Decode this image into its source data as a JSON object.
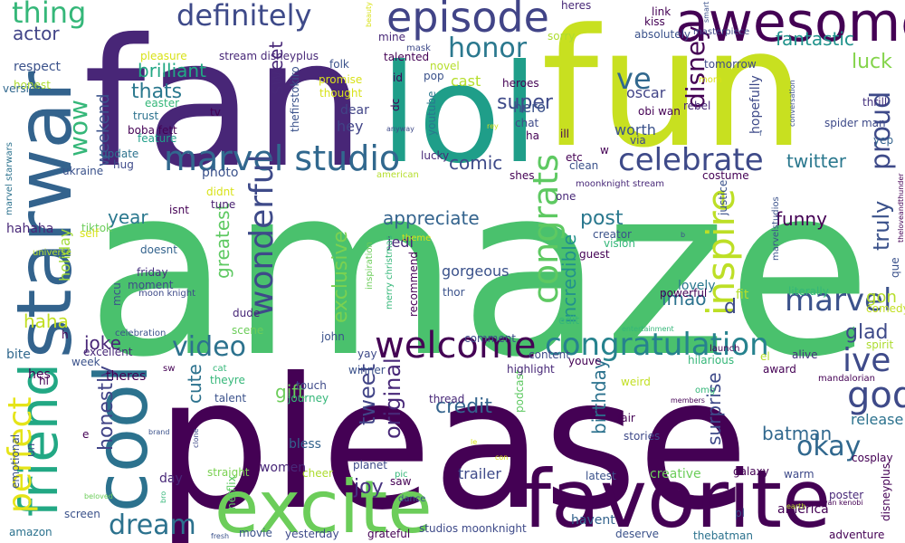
{
  "palette": {
    "dark_purple": "#440154",
    "indigo": "#472d7b",
    "blue_purple": "#3b528b",
    "slate_blue": "#2c728e",
    "teal_blue": "#21918c",
    "teal": "#28ae80",
    "green": "#5ec962",
    "light_green": "#addc30",
    "yellow": "#d8e219",
    "bright_yellow": "#fde725"
  },
  "words": [
    {
      "text": "amaze",
      "color": "#4ac16d"
    },
    {
      "text": "please",
      "color": "#440154"
    },
    {
      "text": "fan",
      "color": "#482677"
    },
    {
      "text": "fun",
      "color": "#c8e020"
    },
    {
      "text": "lol",
      "color": "#1f9e89"
    },
    {
      "text": "starwar",
      "color": "#33638d"
    },
    {
      "text": "favorite",
      "color": "#440154"
    },
    {
      "text": "excite",
      "color": "#6ccd5a"
    },
    {
      "text": "cool",
      "color": "#2c728e"
    },
    {
      "text": "awesome",
      "color": "#440154"
    },
    {
      "text": "friend",
      "color": "#22a884"
    },
    {
      "text": "episode",
      "color": "#414487"
    },
    {
      "text": "welcome",
      "color": "#440154"
    },
    {
      "text": "marvel studio",
      "color": "#31688e"
    },
    {
      "text": "congratulation",
      "color": "#26828e"
    },
    {
      "text": "celebrate",
      "color": "#3e4a89"
    },
    {
      "text": "definitely",
      "color": "#3e4a89"
    },
    {
      "text": "inspire",
      "color": "#bddf26"
    },
    {
      "text": "congrats",
      "color": "#5ec962"
    },
    {
      "text": "god",
      "color": "#3e4a89"
    },
    {
      "text": "wonderful",
      "color": "#3e4a89"
    },
    {
      "text": "perfect",
      "color": "#e5e419"
    },
    {
      "text": "thing",
      "color": "#35b779"
    },
    {
      "text": "honor",
      "color": "#2a788e"
    },
    {
      "text": "marvel",
      "color": "#3b528b"
    },
    {
      "text": "proud",
      "color": "#3e4a89"
    },
    {
      "text": "dream",
      "color": "#2c728e"
    },
    {
      "text": "video",
      "color": "#2c728e"
    },
    {
      "text": "okay",
      "color": "#31688e"
    },
    {
      "text": "wow",
      "color": "#35b779"
    },
    {
      "text": "fantastic",
      "color": "#20938c"
    },
    {
      "text": "brilliant",
      "color": "#22a884"
    },
    {
      "text": "ve",
      "color": "#31688e"
    },
    {
      "text": "super",
      "color": "#3e4a89"
    },
    {
      "text": "thats",
      "color": "#2a788e"
    },
    {
      "text": "luck",
      "color": "#84d44b"
    },
    {
      "text": "weekend",
      "color": "#3b528b"
    },
    {
      "text": "sweet",
      "color": "#482878"
    },
    {
      "text": "disney",
      "color": "#440154"
    },
    {
      "text": "twitter",
      "color": "#2a788e"
    },
    {
      "text": "comic",
      "color": "#3e4a89"
    },
    {
      "text": "appreciate",
      "color": "#33638d"
    },
    {
      "text": "incredible",
      "color": "#21918c"
    },
    {
      "text": "funny",
      "color": "#440154"
    },
    {
      "text": "truly",
      "color": "#3b528b"
    },
    {
      "text": "post",
      "color": "#2a788e"
    },
    {
      "text": "year",
      "color": "#2a788e"
    },
    {
      "text": "greatest",
      "color": "#5ec962"
    },
    {
      "text": "exclusive",
      "color": "#7ad151"
    },
    {
      "text": "lmao",
      "color": "#2c728e"
    },
    {
      "text": "lovely",
      "color": "#2a788e"
    },
    {
      "text": "gon",
      "color": "#b5de2b"
    },
    {
      "text": "glad",
      "color": "#3e4a89"
    },
    {
      "text": "ive",
      "color": "#3e4a89"
    },
    {
      "text": "joke",
      "color": "#482677"
    },
    {
      "text": "haha",
      "color": "#c2df23"
    },
    {
      "text": "holiday",
      "color": "#a2da37"
    },
    {
      "text": "actor",
      "color": "#414487"
    },
    {
      "text": "tweet",
      "color": "#414487"
    },
    {
      "text": "original",
      "color": "#482878"
    },
    {
      "text": "cute",
      "color": "#2c728e"
    },
    {
      "text": "gift",
      "color": "#6ccd5a"
    },
    {
      "text": "joy",
      "color": "#46327e"
    },
    {
      "text": "honestly",
      "color": "#414487"
    },
    {
      "text": "credit",
      "color": "#33638d"
    },
    {
      "text": "birthday",
      "color": "#2c728e"
    },
    {
      "text": "surprise",
      "color": "#3e4a89"
    },
    {
      "text": "batman",
      "color": "#31688e"
    },
    {
      "text": "release",
      "color": "#2c728e"
    },
    {
      "text": "gorgeous",
      "color": "#3b528b"
    },
    {
      "text": "trailer",
      "color": "#3e4a89"
    },
    {
      "text": "d",
      "color": "#3e4a89"
    },
    {
      "text": "hero",
      "color": "#3b528b"
    },
    {
      "text": "hey",
      "color": "#414487"
    },
    {
      "text": "dear",
      "color": "#414487"
    },
    {
      "text": "cast",
      "color": "#b5de2b"
    },
    {
      "text": "worth",
      "color": "#3b528b"
    },
    {
      "text": "jedi",
      "color": "#482878"
    },
    {
      "text": "bless",
      "color": "#33638d"
    },
    {
      "text": "oscar",
      "color": "#414487"
    },
    {
      "text": "hopefully",
      "color": "#3e4a89"
    },
    {
      "text": "stream disneyplus",
      "color": "#482878"
    },
    {
      "text": "pleasure",
      "color": "#d8e219"
    },
    {
      "text": "respect",
      "color": "#3b528b"
    },
    {
      "text": "honest",
      "color": "#addc30"
    },
    {
      "text": "version",
      "color": "#31688e"
    },
    {
      "text": "trust",
      "color": "#2c728e"
    },
    {
      "text": "boba fett",
      "color": "#440154"
    },
    {
      "text": "feature",
      "color": "#1f9e89"
    },
    {
      "text": "update",
      "color": "#2c728e"
    },
    {
      "text": "hug",
      "color": "#3e4a89"
    },
    {
      "text": "photo",
      "color": "#3b528b"
    },
    {
      "text": "ukraine",
      "color": "#3b528b"
    },
    {
      "text": "tune",
      "color": "#481f70"
    },
    {
      "text": "didnt",
      "color": "#d8e219"
    },
    {
      "text": "isnt",
      "color": "#440154"
    },
    {
      "text": "hahaha",
      "color": "#482878"
    },
    {
      "text": "tiktok",
      "color": "#6ccd5a"
    },
    {
      "text": "doesnt",
      "color": "#33638d"
    },
    {
      "text": "friday",
      "color": "#46327e"
    },
    {
      "text": "moment",
      "color": "#3e4a89"
    },
    {
      "text": "mcu",
      "color": "#3b528b"
    },
    {
      "text": "dude",
      "color": "#482878"
    },
    {
      "text": "excellent",
      "color": "#482878"
    },
    {
      "text": "week",
      "color": "#3b528b"
    },
    {
      "text": "bite",
      "color": "#31688e"
    },
    {
      "text": "hes",
      "color": "#440154"
    },
    {
      "text": "theres",
      "color": "#440154"
    },
    {
      "text": "talent",
      "color": "#3b528b"
    },
    {
      "text": "theyre",
      "color": "#35b779"
    },
    {
      "text": "touch",
      "color": "#3e4a89"
    },
    {
      "text": "journey",
      "color": "#35b779"
    },
    {
      "text": "john",
      "color": "#3b528b"
    },
    {
      "text": "scene",
      "color": "#6ccd5a"
    },
    {
      "text": "winner",
      "color": "#3b528b"
    },
    {
      "text": "comment",
      "color": "#3e4a89"
    },
    {
      "text": "content",
      "color": "#3e4a89"
    },
    {
      "text": "youve",
      "color": "#440154"
    },
    {
      "text": "weird",
      "color": "#c2df23"
    },
    {
      "text": "alive",
      "color": "#46327e"
    },
    {
      "text": "hilarious",
      "color": "#35b779"
    },
    {
      "text": "podcast",
      "color": "#5ec962"
    },
    {
      "text": "thread",
      "color": "#482878"
    },
    {
      "text": "highlight",
      "color": "#482878"
    },
    {
      "text": "fair",
      "color": "#440154"
    },
    {
      "text": "stories",
      "color": "#3e4a89"
    },
    {
      "text": "award",
      "color": "#440154"
    },
    {
      "text": "cosplay",
      "color": "#440154"
    },
    {
      "text": "warm",
      "color": "#3e4a89"
    },
    {
      "text": "galaxy",
      "color": "#440154"
    },
    {
      "text": "creative",
      "color": "#6ccd5a"
    },
    {
      "text": "poster",
      "color": "#482878"
    },
    {
      "text": "latest",
      "color": "#3b528b"
    },
    {
      "text": "straight",
      "color": "#7ad151"
    },
    {
      "text": "cheer",
      "color": "#addc30"
    },
    {
      "text": "planet",
      "color": "#3e4a89"
    },
    {
      "text": "saw",
      "color": "#440154"
    },
    {
      "text": "women",
      "color": "#482878"
    },
    {
      "text": "day",
      "color": "#482878"
    },
    {
      "text": "netflix",
      "color": "#5ec962"
    },
    {
      "text": "movie",
      "color": "#3b528b"
    },
    {
      "text": "yesterday",
      "color": "#3e4a89"
    },
    {
      "text": "grateful",
      "color": "#440154"
    },
    {
      "text": "deserve",
      "color": "#3b528b"
    },
    {
      "text": "havent",
      "color": "#33638d"
    },
    {
      "text": "adventure",
      "color": "#440154"
    },
    {
      "text": "thebatman",
      "color": "#2c728e"
    },
    {
      "text": "america",
      "color": "#440154"
    },
    {
      "text": "screen",
      "color": "#3b528b"
    },
    {
      "text": "amazon",
      "color": "#2c728e"
    },
    {
      "text": "studios moonknight",
      "color": "#3e4a89"
    },
    {
      "text": "emotional",
      "color": "#3b528b"
    },
    {
      "text": "un",
      "color": "#3e4a89"
    },
    {
      "text": "hi",
      "color": "#440154"
    },
    {
      "text": "disneyplus",
      "color": "#440154"
    },
    {
      "text": "tomorrow",
      "color": "#3e4a89"
    },
    {
      "text": "absolutely",
      "color": "#3b528b"
    },
    {
      "text": "heres",
      "color": "#482878"
    },
    {
      "text": "link",
      "color": "#440154"
    },
    {
      "text": "kiss",
      "color": "#440154"
    },
    {
      "text": "masterpiece",
      "color": "#3e4a89"
    },
    {
      "text": "sorry",
      "color": "#addc30"
    },
    {
      "text": "mine",
      "color": "#482878"
    },
    {
      "text": "mask",
      "color": "#3e4a89"
    },
    {
      "text": "talented",
      "color": "#440154"
    },
    {
      "text": "folk",
      "color": "#3b528b"
    },
    {
      "text": "novel",
      "color": "#b5de2b"
    },
    {
      "text": "pop",
      "color": "#3b528b"
    },
    {
      "text": "id",
      "color": "#440154"
    },
    {
      "text": "promise",
      "color": "#d8e219"
    },
    {
      "text": "thought",
      "color": "#d8e219"
    },
    {
      "text": "heroes",
      "color": "#440154"
    },
    {
      "text": "chat",
      "color": "#3e4a89"
    },
    {
      "text": "rebel",
      "color": "#482878"
    },
    {
      "text": "ill",
      "color": "#440154"
    },
    {
      "text": "obi wan",
      "color": "#440154"
    },
    {
      "text": "via",
      "color": "#3e4a89"
    },
    {
      "text": "dc",
      "color": "#440154"
    },
    {
      "text": "youtube",
      "color": "#2a788e"
    },
    {
      "text": "thefirstokiro",
      "color": "#3b528b"
    },
    {
      "text": "lucky",
      "color": "#482878"
    },
    {
      "text": "easter",
      "color": "#35b779"
    },
    {
      "text": "tv",
      "color": "#440154"
    },
    {
      "text": "spider man",
      "color": "#3e4a89"
    },
    {
      "text": "yep",
      "color": "#33638d"
    },
    {
      "text": "thrill",
      "color": "#46327e"
    },
    {
      "text": "shes",
      "color": "#440154"
    },
    {
      "text": "etc",
      "color": "#440154"
    },
    {
      "text": "american",
      "color": "#b5de2b"
    },
    {
      "text": "clean",
      "color": "#3b528b"
    },
    {
      "text": "costume",
      "color": "#440154"
    },
    {
      "text": "justice",
      "color": "#3b528b"
    },
    {
      "text": "one",
      "color": "#482878"
    },
    {
      "text": "moonknight stream",
      "color": "#482878"
    },
    {
      "text": "que",
      "color": "#3b528b"
    },
    {
      "text": "theloveandthunder",
      "color": "#440154"
    },
    {
      "text": "marvelstudios",
      "color": "#3b528b"
    },
    {
      "text": "vision",
      "color": "#35b779"
    },
    {
      "text": "creator",
      "color": "#3b528b"
    },
    {
      "text": "guest",
      "color": "#440154"
    },
    {
      "text": "powerful",
      "color": "#440154"
    },
    {
      "text": "literally",
      "color": "#35b779"
    },
    {
      "text": "fit",
      "color": "#b5de2b"
    },
    {
      "text": "comedy",
      "color": "#c2df23"
    },
    {
      "text": "spirit",
      "color": "#addc30"
    },
    {
      "text": "thor",
      "color": "#3b528b"
    },
    {
      "text": "recommend",
      "color": "#440154"
    },
    {
      "text": "inspiration",
      "color": "#6ccd5a"
    },
    {
      "text": "merry christmas",
      "color": "#35b779"
    },
    {
      "text": "theme",
      "color": "#d8e219"
    },
    {
      "text": "edit",
      "color": "#35b779"
    },
    {
      "text": "entertainment",
      "color": "#35b779"
    },
    {
      "text": "launch",
      "color": "#440154"
    },
    {
      "text": "el",
      "color": "#b5de2b"
    },
    {
      "text": "yay",
      "color": "#3e4a89"
    },
    {
      "text": "members",
      "color": "#440154"
    },
    {
      "text": "omg",
      "color": "#35b779"
    },
    {
      "text": "mandalorian",
      "color": "#440154"
    },
    {
      "text": "marvel starwars",
      "color": "#2c728e"
    },
    {
      "text": "universe",
      "color": "#b5de2b"
    },
    {
      "text": "self",
      "color": "#d8e219"
    },
    {
      "text": "moon knight",
      "color": "#3e4a89"
    },
    {
      "text": "celebration",
      "color": "#3b528b"
    },
    {
      "text": "sw",
      "color": "#440154"
    },
    {
      "text": "cat",
      "color": "#35b779"
    },
    {
      "text": "brand",
      "color": "#3b528b"
    },
    {
      "text": "clone",
      "color": "#3e4a89"
    },
    {
      "text": "pic",
      "color": "#35b779"
    },
    {
      "text": "dance",
      "color": "#3b528b"
    },
    {
      "text": "con",
      "color": "#d8e219"
    },
    {
      "text": "le",
      "color": "#d8e219"
    },
    {
      "text": "bro",
      "color": "#35b779"
    },
    {
      "text": "beloved",
      "color": "#6ccd5a"
    },
    {
      "text": "fresh",
      "color": "#3b528b"
    },
    {
      "text": "pl",
      "color": "#3b528b"
    },
    {
      "text": "earth",
      "color": "#b5de2b"
    },
    {
      "text": "wan kenobi",
      "color": "#440154"
    },
    {
      "text": "mom",
      "color": "#d8e219"
    },
    {
      "text": "beauty",
      "color": "#d8e219"
    },
    {
      "text": "smart",
      "color": "#3b528b"
    },
    {
      "text": "rey",
      "color": "#d8e219"
    },
    {
      "text": "anyway",
      "color": "#3e4a89"
    },
    {
      "text": "conversation",
      "color": "#3b528b"
    },
    {
      "text": "ha",
      "color": "#440154"
    },
    {
      "text": "w",
      "color": "#440154"
    },
    {
      "text": "e",
      "color": "#440154"
    },
    {
      "text": "h",
      "color": "#440154"
    },
    {
      "text": "b",
      "color": "#3b528b"
    },
    {
      "text": "f",
      "color": "#3b528b"
    }
  ]
}
